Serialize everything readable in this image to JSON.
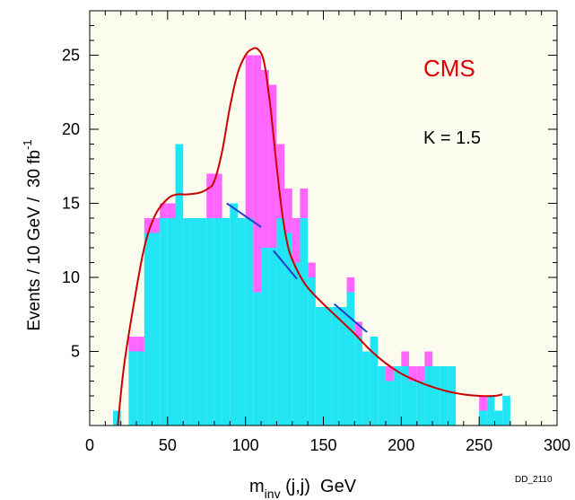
{
  "chart_data": {
    "type": "bar",
    "title": "",
    "xlabel_main": "m",
    "xlabel_sub": "inv",
    "xlabel_rest": " (j,j)  GeV",
    "ylabel_main": "Events / 10 GeV /  30 fb",
    "ylabel_sup": "-1",
    "xlim": [
      0,
      300
    ],
    "ylim": [
      0,
      28
    ],
    "xticks": [
      0,
      50,
      100,
      150,
      200,
      250,
      300
    ],
    "yticks": [
      5,
      10,
      15,
      20,
      25
    ],
    "annotations": {
      "experiment": "CMS",
      "kfactor": "K = 1.5",
      "figure_id": "DD_2110"
    },
    "colors": {
      "background": "#fbfbee",
      "background_series": "#22e5f4",
      "signal_series": "#ff66ff",
      "fit_curve": "#cc0000",
      "segment": "#1f3fd1",
      "axis": "#000000",
      "experiment_label": "#dd0000"
    },
    "bin_width": 5,
    "series": [
      {
        "name": "background",
        "bins": [
          {
            "x": 15,
            "y": 1
          },
          {
            "x": 20,
            "y": 0
          },
          {
            "x": 25,
            "y": 5
          },
          {
            "x": 30,
            "y": 5
          },
          {
            "x": 35,
            "y": 13
          },
          {
            "x": 40,
            "y": 13
          },
          {
            "x": 45,
            "y": 14
          },
          {
            "x": 50,
            "y": 14
          },
          {
            "x": 55,
            "y": 19
          },
          {
            "x": 60,
            "y": 14
          },
          {
            "x": 65,
            "y": 14
          },
          {
            "x": 70,
            "y": 14
          },
          {
            "x": 75,
            "y": 14
          },
          {
            "x": 80,
            "y": 14
          },
          {
            "x": 85,
            "y": 14
          },
          {
            "x": 90,
            "y": 15
          },
          {
            "x": 95,
            "y": 14
          },
          {
            "x": 100,
            "y": 14
          },
          {
            "x": 105,
            "y": 9
          },
          {
            "x": 110,
            "y": 12
          },
          {
            "x": 115,
            "y": 12
          },
          {
            "x": 120,
            "y": 14
          },
          {
            "x": 125,
            "y": 13
          },
          {
            "x": 130,
            "y": 11
          },
          {
            "x": 135,
            "y": 14
          },
          {
            "x": 140,
            "y": 10
          },
          {
            "x": 145,
            "y": 8
          },
          {
            "x": 150,
            "y": 8
          },
          {
            "x": 155,
            "y": 8
          },
          {
            "x": 160,
            "y": 8
          },
          {
            "x": 165,
            "y": 9
          },
          {
            "x": 170,
            "y": 6
          },
          {
            "x": 175,
            "y": 5
          },
          {
            "x": 180,
            "y": 6
          },
          {
            "x": 185,
            "y": 4
          },
          {
            "x": 190,
            "y": 3
          },
          {
            "x": 195,
            "y": 4
          },
          {
            "x": 200,
            "y": 4
          },
          {
            "x": 205,
            "y": 3
          },
          {
            "x": 210,
            "y": 3
          },
          {
            "x": 215,
            "y": 4
          },
          {
            "x": 220,
            "y": 4
          },
          {
            "x": 225,
            "y": 4
          },
          {
            "x": 230,
            "y": 4
          },
          {
            "x": 235,
            "y": 0
          },
          {
            "x": 240,
            "y": 0
          },
          {
            "x": 245,
            "y": 0
          },
          {
            "x": 250,
            "y": 1
          },
          {
            "x": 255,
            "y": 2
          },
          {
            "x": 260,
            "y": 1
          },
          {
            "x": 265,
            "y": 2
          }
        ]
      },
      {
        "name": "signal",
        "bins": [
          {
            "x": 25,
            "y": 1
          },
          {
            "x": 30,
            "y": 1
          },
          {
            "x": 35,
            "y": 1
          },
          {
            "x": 40,
            "y": 1
          },
          {
            "x": 45,
            "y": 1
          },
          {
            "x": 50,
            "y": 1
          },
          {
            "x": 75,
            "y": 3
          },
          {
            "x": 80,
            "y": 3
          },
          {
            "x": 100,
            "y": 11
          },
          {
            "x": 105,
            "y": 16
          },
          {
            "x": 110,
            "y": 12
          },
          {
            "x": 115,
            "y": 11
          },
          {
            "x": 120,
            "y": 5
          },
          {
            "x": 125,
            "y": 3
          },
          {
            "x": 130,
            "y": 3
          },
          {
            "x": 135,
            "y": 2
          },
          {
            "x": 140,
            "y": 1
          },
          {
            "x": 165,
            "y": 1
          },
          {
            "x": 170,
            "y": 1
          },
          {
            "x": 190,
            "y": 1
          },
          {
            "x": 200,
            "y": 1
          },
          {
            "x": 205,
            "y": 1
          },
          {
            "x": 210,
            "y": 1
          },
          {
            "x": 215,
            "y": 1
          },
          {
            "x": 250,
            "y": 1
          }
        ]
      }
    ],
    "fit_curve": [
      [
        18,
        0
      ],
      [
        22,
        4
      ],
      [
        28,
        8
      ],
      [
        35,
        12
      ],
      [
        42,
        14.2
      ],
      [
        50,
        15.3
      ],
      [
        56,
        15.6
      ],
      [
        62,
        15.6
      ],
      [
        70,
        15.7
      ],
      [
        76,
        16
      ],
      [
        80,
        16.5
      ],
      [
        85,
        18.5
      ],
      [
        90,
        21.5
      ],
      [
        95,
        23.8
      ],
      [
        100,
        25
      ],
      [
        104,
        25.4
      ],
      [
        108,
        25.4
      ],
      [
        112,
        24.5
      ],
      [
        116,
        21.5
      ],
      [
        120,
        17.5
      ],
      [
        124,
        14
      ],
      [
        128,
        11.8
      ],
      [
        134,
        10.3
      ],
      [
        140,
        9.3
      ],
      [
        150,
        8.2
      ],
      [
        160,
        7.2
      ],
      [
        170,
        6.2
      ],
      [
        180,
        5.1
      ],
      [
        190,
        4.2
      ],
      [
        200,
        3.5
      ],
      [
        210,
        3
      ],
      [
        220,
        2.6
      ],
      [
        230,
        2.3
      ],
      [
        240,
        2.1
      ],
      [
        250,
        2
      ],
      [
        260,
        2
      ],
      [
        265,
        2.1
      ]
    ],
    "segments": [
      [
        [
          88,
          15
        ],
        [
          110,
          13.4
        ]
      ],
      [
        [
          118,
          11.8
        ],
        [
          133,
          9.9
        ]
      ],
      [
        [
          157,
          8.2
        ],
        [
          178,
          6.3
        ]
      ]
    ]
  }
}
